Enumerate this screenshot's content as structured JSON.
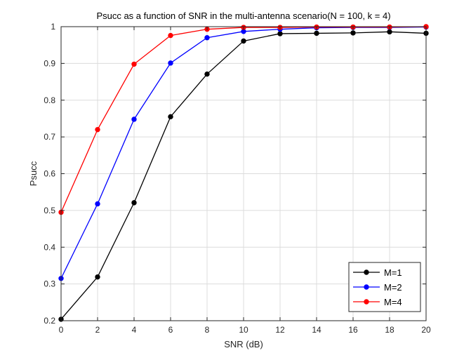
{
  "chart_data": {
    "type": "line",
    "title": "Psucc as a function of SNR  in the multi-antenna scenario(N = 100, k = 4)",
    "xlabel": "SNR (dB)",
    "ylabel": "Psucc",
    "xlim": [
      0,
      20
    ],
    "ylim": [
      0.2,
      1
    ],
    "xticks": [
      0,
      2,
      4,
      6,
      8,
      10,
      12,
      14,
      16,
      18,
      20
    ],
    "yticks": [
      0.2,
      0.3,
      0.4,
      0.5,
      0.6,
      0.7,
      0.8,
      0.9,
      1
    ],
    "ytick_labels": [
      "0.2",
      "0.3",
      "0.4",
      "0.5",
      "0.6",
      "0.7",
      "0.8",
      "0.9",
      "1"
    ],
    "grid": true,
    "legend_position": "bottom-right",
    "x": [
      0,
      2,
      4,
      6,
      8,
      10,
      12,
      14,
      16,
      18,
      20
    ],
    "series": [
      {
        "name": "M=1",
        "color": "#000000",
        "values": [
          0.204,
          0.319,
          0.521,
          0.755,
          0.871,
          0.961,
          0.981,
          0.982,
          0.983,
          0.986,
          0.982
        ]
      },
      {
        "name": "M=2",
        "color": "#0000ff",
        "values": [
          0.315,
          0.518,
          0.748,
          0.901,
          0.97,
          0.987,
          0.993,
          0.997,
          0.998,
          0.998,
          0.999
        ]
      },
      {
        "name": "M=4",
        "color": "#ff0000",
        "values": [
          0.495,
          0.72,
          0.898,
          0.976,
          0.993,
          0.998,
          0.998,
          0.999,
          0.999,
          0.999,
          1.0
        ]
      }
    ]
  }
}
